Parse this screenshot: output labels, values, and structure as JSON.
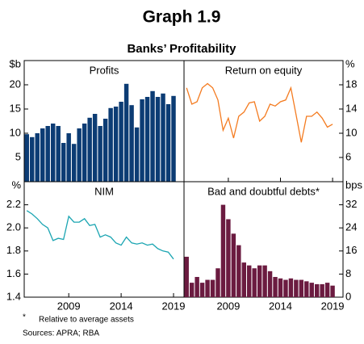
{
  "header": {
    "title": "Graph 1.9",
    "subtitle": "Banks’ Profitability"
  },
  "footnotes": {
    "marker": "*",
    "note": "Relative to average assets",
    "sources": "Sources: APRA; RBA"
  },
  "chart_data": [
    {
      "type": "bar",
      "title": "Profits",
      "y_label": "$b",
      "axis_side": "left",
      "row": "top",
      "color": "#0c3c74",
      "x": [
        2005,
        2005.5,
        2006,
        2006.5,
        2007,
        2007.5,
        2008,
        2008.5,
        2009,
        2009.5,
        2010,
        2010.5,
        2011,
        2011.5,
        2012,
        2012.5,
        2013,
        2013.5,
        2014,
        2014.5,
        2015,
        2015.5,
        2016,
        2016.5,
        2017,
        2017.5,
        2018,
        2018.5,
        2019
      ],
      "values": [
        9.8,
        9.2,
        10,
        11,
        11.5,
        12,
        11.5,
        8,
        10,
        7.8,
        11,
        12,
        13.2,
        14,
        11.5,
        13,
        15.2,
        15.5,
        16.5,
        20.2,
        15.8,
        11.2,
        17,
        17.5,
        18.7,
        17.5,
        18.2,
        16,
        17.7
      ],
      "xlim": [
        2004.75,
        2020
      ],
      "xticks": [
        2009,
        2014,
        2019
      ],
      "ylim": [
        0,
        25
      ],
      "yticks": [
        5,
        10,
        15,
        20
      ]
    },
    {
      "type": "line",
      "title": "Return on equity",
      "y_label": "%",
      "axis_side": "right",
      "row": "top",
      "color": "#f47b20",
      "x": [
        2005,
        2005.5,
        2006,
        2006.5,
        2007,
        2007.5,
        2008,
        2008.5,
        2009,
        2009.5,
        2010,
        2010.5,
        2011,
        2011.5,
        2012,
        2012.5,
        2013,
        2013.5,
        2014,
        2014.5,
        2015,
        2015.5,
        2016,
        2016.5,
        2017,
        2017.5,
        2018,
        2018.5,
        2019
      ],
      "values": [
        17.5,
        14.8,
        15.2,
        17.5,
        18.2,
        17.5,
        15.5,
        10.5,
        12.5,
        9.2,
        12.8,
        13.5,
        15,
        15.2,
        12,
        12.8,
        14.8,
        14.5,
        15.2,
        15.5,
        17.5,
        13,
        8.5,
        12.8,
        12.8,
        13.5,
        12.5,
        11,
        11.5
      ],
      "xlim": [
        2004.75,
        2020
      ],
      "xticks": [
        2009,
        2014,
        2019
      ],
      "ylim": [
        2,
        22
      ],
      "yticks": [
        6,
        10,
        14,
        18
      ]
    },
    {
      "type": "line",
      "title": "NIM",
      "y_label": "%",
      "axis_side": "left",
      "row": "bottom",
      "color": "#1ba5b2",
      "x": [
        2005,
        2005.5,
        2006,
        2006.5,
        2007,
        2007.5,
        2008,
        2008.5,
        2009,
        2009.5,
        2010,
        2010.5,
        2011,
        2011.5,
        2012,
        2012.5,
        2013,
        2013.5,
        2014,
        2014.5,
        2015,
        2015.5,
        2016,
        2016.5,
        2017,
        2017.5,
        2018,
        2018.5,
        2019
      ],
      "values": [
        2.15,
        2.12,
        2.08,
        2.03,
        2.0,
        1.89,
        1.91,
        1.9,
        2.1,
        2.05,
        2.05,
        2.08,
        2.02,
        2.03,
        1.92,
        1.94,
        1.92,
        1.87,
        1.85,
        1.92,
        1.87,
        1.86,
        1.87,
        1.85,
        1.86,
        1.82,
        1.8,
        1.79,
        1.73
      ],
      "xlim": [
        2004.75,
        2020
      ],
      "xticks": [
        2009,
        2014,
        2019
      ],
      "ylim": [
        1.4,
        2.4
      ],
      "yticks": [
        {
          "value": 1.4,
          "label": "1.4"
        },
        {
          "value": 1.6,
          "label": "1.6"
        },
        {
          "value": 1.8,
          "label": "1.8"
        },
        {
          "value": 2.0,
          "label": "2.0"
        },
        {
          "value": 2.2,
          "label": "2.2"
        }
      ]
    },
    {
      "type": "bar",
      "title": "Bad and doubtful debts*",
      "y_label": "bps",
      "axis_side": "right",
      "row": "bottom",
      "color": "#6b1b40",
      "x": [
        2005,
        2005.5,
        2006,
        2006.5,
        2007,
        2007.5,
        2008,
        2008.5,
        2009,
        2009.5,
        2010,
        2010.5,
        2011,
        2011.5,
        2012,
        2012.5,
        2013,
        2013.5,
        2014,
        2014.5,
        2015,
        2015.5,
        2016,
        2016.5,
        2017,
        2017.5,
        2018,
        2018.5,
        2019
      ],
      "values": [
        14,
        5,
        7,
        5,
        6,
        6,
        10,
        32,
        27,
        22,
        18,
        12,
        11,
        10,
        11,
        11,
        9,
        7,
        6.5,
        6,
        6.5,
        6,
        6,
        5.5,
        5,
        4.5,
        4.5,
        5,
        4
      ],
      "xlim": [
        2004.75,
        2020
      ],
      "xticks": [
        2009,
        2014,
        2019
      ],
      "ylim": [
        0,
        40
      ],
      "yticks": [
        0,
        8,
        16,
        24,
        32
      ]
    }
  ]
}
